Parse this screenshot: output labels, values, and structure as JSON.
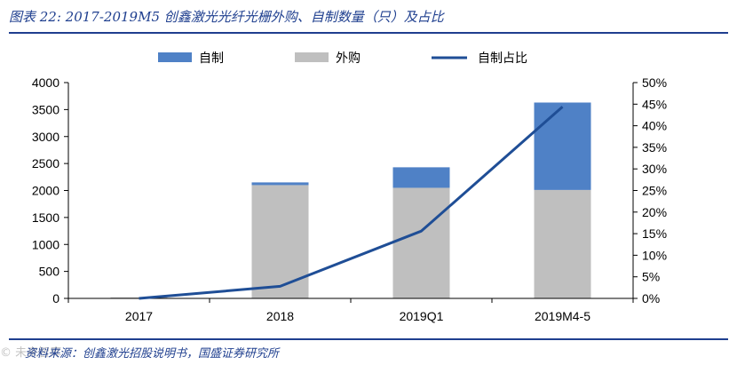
{
  "header": {
    "title": "图表 22: 2017-2019M5 创鑫激光光纤光栅外购、自制数量（只）及占比"
  },
  "footer": {
    "source": "资料来源：创鑫激光招股说明书，国盛证券研究所",
    "watermark": "© 未来智库"
  },
  "colors": {
    "self_made": "#4f81c6",
    "purchased": "#bfbfbf",
    "share_line": "#1f4e96",
    "rule": "#1f3f8f"
  },
  "chart_data": {
    "type": "bar",
    "stacked": true,
    "categories": [
      "2017",
      "2018",
      "2019Q1",
      "2019M4-5"
    ],
    "series": [
      {
        "name": "自制",
        "kind": "bar",
        "axis": "left",
        "values": [
          0,
          50,
          380,
          1620
        ]
      },
      {
        "name": "外购",
        "kind": "bar",
        "axis": "left",
        "values": [
          20,
          2100,
          2050,
          2010
        ]
      },
      {
        "name": "自制占比",
        "kind": "line",
        "axis": "right",
        "values": [
          0.0,
          0.028,
          0.156,
          0.444
        ]
      }
    ],
    "left_axis": {
      "min": 0,
      "max": 4000,
      "ticks": [
        "0",
        "500",
        "1000",
        "1500",
        "2000",
        "2500",
        "3000",
        "3500",
        "4000"
      ]
    },
    "right_axis": {
      "min": 0,
      "max": 0.5,
      "ticks": [
        "0%",
        "5%",
        "10%",
        "15%",
        "20%",
        "25%",
        "30%",
        "35%",
        "40%",
        "45%",
        "50%"
      ]
    },
    "legend": {
      "position": "top",
      "items": [
        "自制",
        "外购",
        "自制占比"
      ]
    },
    "grid": false
  }
}
